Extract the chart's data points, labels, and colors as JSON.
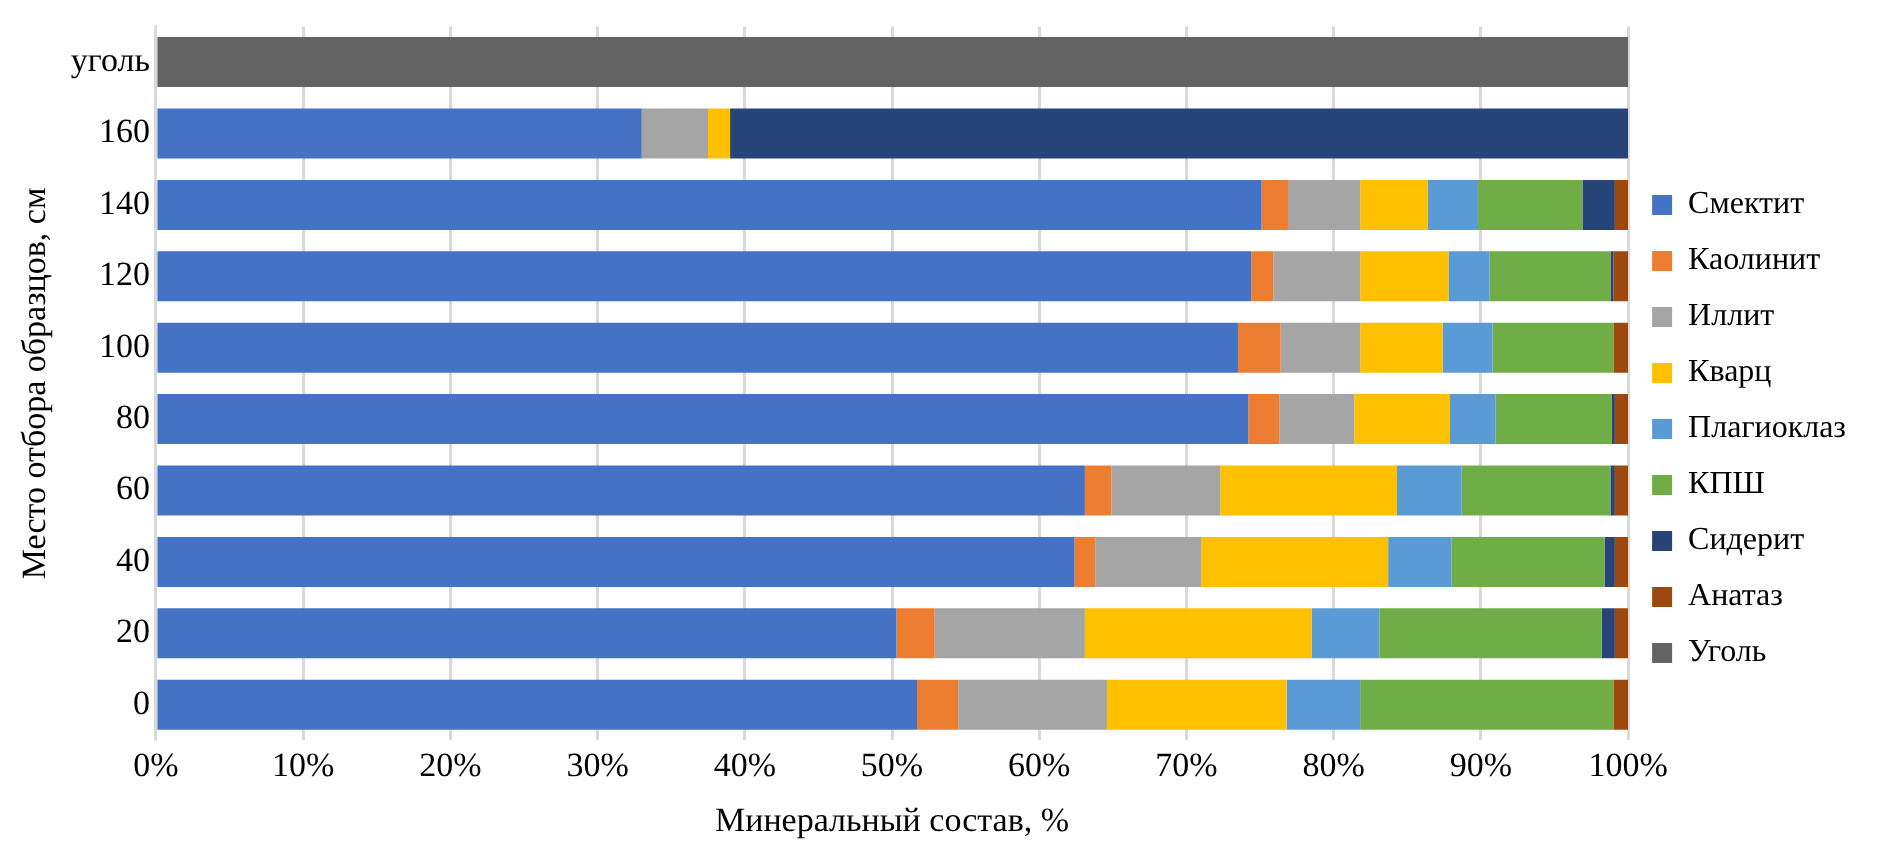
{
  "chart_data": {
    "type": "bar",
    "orientation": "horizontal",
    "stacked": true,
    "xlabel": "Минеральный состав, %",
    "ylabel": "Место отбора образцов, см",
    "categories": [
      "уголь",
      "160",
      "140",
      "120",
      "100",
      "80",
      "60",
      "40",
      "20",
      "0"
    ],
    "series": [
      {
        "name": "Смектит",
        "color": "#4472c4",
        "values": [
          0,
          33.0,
          75.1,
          74.4,
          73.5,
          74.2,
          63.1,
          62.4,
          50.3,
          51.7
        ]
      },
      {
        "name": "Каолинит",
        "color": "#ed7d31",
        "values": [
          0,
          0,
          1.8,
          1.5,
          2.9,
          2.1,
          1.8,
          1.4,
          2.6,
          2.8
        ]
      },
      {
        "name": "Иллит",
        "color": "#a5a5a5",
        "values": [
          0,
          4.5,
          4.9,
          5.9,
          5.4,
          5.1,
          7.4,
          7.2,
          10.2,
          10.1
        ]
      },
      {
        "name": "Кварц",
        "color": "#ffc000",
        "values": [
          0,
          1.5,
          4.6,
          6.0,
          5.6,
          6.5,
          12.0,
          12.7,
          15.4,
          12.2
        ]
      },
      {
        "name": "Плагиоклаз",
        "color": "#5b9bd5",
        "values": [
          0,
          0,
          3.4,
          2.8,
          3.4,
          3.1,
          4.4,
          4.3,
          4.6,
          5.0
        ]
      },
      {
        "name": "КПШ",
        "color": "#70ad47",
        "values": [
          0,
          0,
          7.1,
          8.2,
          8.2,
          7.9,
          10.1,
          10.4,
          15.1,
          17.2
        ]
      },
      {
        "name": "Сидерит",
        "color": "#264478",
        "values": [
          0,
          61.0,
          2.2,
          0.2,
          0,
          0.2,
          0.3,
          0.7,
          0.9,
          0
        ]
      },
      {
        "name": "Анатаз",
        "color": "#9e480e",
        "values": [
          0,
          0,
          0.9,
          1.0,
          1.0,
          0.9,
          0.9,
          0.9,
          0.9,
          1.0
        ]
      },
      {
        "name": "Уголь",
        "color": "#636363",
        "values": [
          100,
          0,
          0,
          0,
          0,
          0,
          0,
          0,
          0,
          0
        ]
      }
    ],
    "xlim": [
      0,
      100
    ],
    "xticks": [
      {
        "value": 0,
        "label": "0%"
      },
      {
        "value": 10,
        "label": "10%"
      },
      {
        "value": 20,
        "label": "20%"
      },
      {
        "value": 30,
        "label": "30%"
      },
      {
        "value": 40,
        "label": "40%"
      },
      {
        "value": 50,
        "label": "50%"
      },
      {
        "value": 60,
        "label": "60%"
      },
      {
        "value": 70,
        "label": "70%"
      },
      {
        "value": 80,
        "label": "80%"
      },
      {
        "value": 90,
        "label": "90%"
      },
      {
        "value": 100,
        "label": "100%"
      }
    ],
    "grid": "x",
    "legend": "right"
  }
}
